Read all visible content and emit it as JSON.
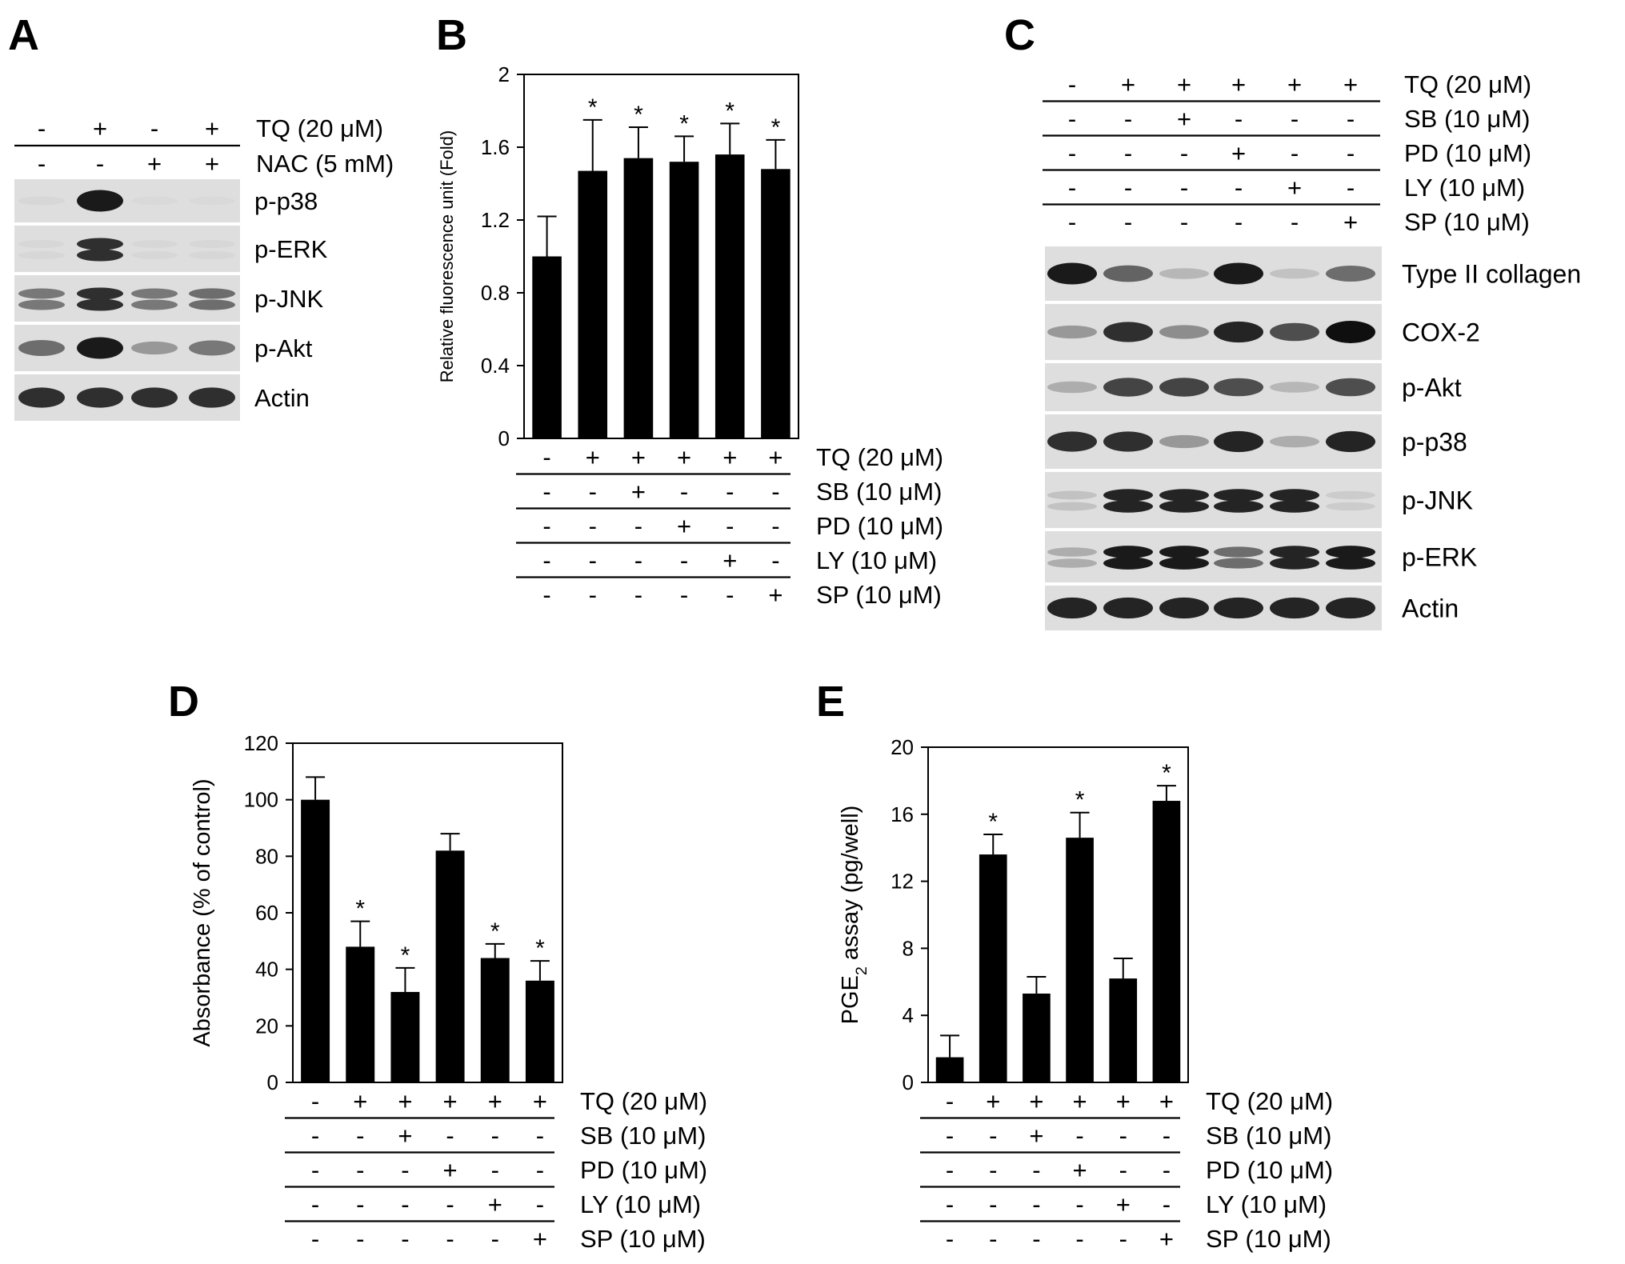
{
  "panels": {
    "A": {
      "letter": "A",
      "conditions": [
        {
          "label": "TQ (20 μM)",
          "signs": [
            "-",
            "+",
            "-",
            "+"
          ]
        },
        {
          "label": "NAC (5 mM)",
          "signs": [
            "-",
            "-",
            "+",
            "+"
          ]
        }
      ],
      "blots": [
        {
          "label": "p-p38",
          "intensity": [
            0.05,
            0.95,
            0.04,
            0.04
          ],
          "double": false
        },
        {
          "label": "p-ERK",
          "intensity": [
            0.05,
            0.85,
            0.05,
            0.05
          ],
          "double": true
        },
        {
          "label": "p-JNK",
          "intensity": [
            0.5,
            0.85,
            0.5,
            0.55
          ],
          "double": true
        },
        {
          "label": "p-Akt",
          "intensity": [
            0.55,
            0.95,
            0.35,
            0.5
          ],
          "double": false
        },
        {
          "label": "Actin",
          "intensity": [
            0.85,
            0.85,
            0.85,
            0.85
          ],
          "double": false
        }
      ]
    },
    "C": {
      "letter": "C",
      "conditions": [
        {
          "label": "TQ (20 μM)",
          "signs": [
            "-",
            "+",
            "+",
            "+",
            "+",
            "+"
          ]
        },
        {
          "label": "SB (10 μM)",
          "signs": [
            "-",
            "-",
            "+",
            "-",
            "-",
            "-"
          ]
        },
        {
          "label": "PD (10 μM)",
          "signs": [
            "-",
            "-",
            "-",
            "+",
            "-",
            "-"
          ]
        },
        {
          "label": "LY (10 μM)",
          "signs": [
            "-",
            "-",
            "-",
            "-",
            "+",
            "-"
          ]
        },
        {
          "label": "SP (10 μM)",
          "signs": [
            "-",
            "-",
            "-",
            "-",
            "-",
            "+"
          ]
        }
      ],
      "blots": [
        {
          "label": "Type II collagen",
          "intensity": [
            0.95,
            0.6,
            0.2,
            0.95,
            0.15,
            0.55
          ],
          "double": false
        },
        {
          "label": "COX-2",
          "intensity": [
            0.35,
            0.85,
            0.4,
            0.9,
            0.7,
            1.0
          ],
          "double": false
        },
        {
          "label": "p-Akt",
          "intensity": [
            0.25,
            0.75,
            0.75,
            0.7,
            0.2,
            0.7
          ],
          "double": false
        },
        {
          "label": "p-p38",
          "intensity": [
            0.85,
            0.85,
            0.35,
            0.9,
            0.25,
            0.9
          ],
          "double": false
        },
        {
          "label": "p-JNK",
          "intensity": [
            0.15,
            0.9,
            0.9,
            0.9,
            0.9,
            0.1
          ],
          "double": true
        },
        {
          "label": "p-ERK",
          "intensity": [
            0.25,
            0.95,
            0.95,
            0.55,
            0.9,
            0.95
          ],
          "double": true
        },
        {
          "label": "Actin",
          "intensity": [
            0.9,
            0.9,
            0.9,
            0.9,
            0.9,
            0.9
          ],
          "double": false
        }
      ]
    },
    "B": {
      "letter": "B"
    },
    "D": {
      "letter": "D"
    },
    "E": {
      "letter": "E"
    }
  },
  "chart_data": [
    {
      "panel": "B",
      "type": "bar",
      "categories": [
        "1",
        "2",
        "3",
        "4",
        "5",
        "6"
      ],
      "values": [
        1.0,
        1.47,
        1.54,
        1.52,
        1.56,
        1.48
      ],
      "errors": [
        0.22,
        0.28,
        0.17,
        0.14,
        0.17,
        0.16
      ],
      "significant": [
        false,
        true,
        true,
        true,
        true,
        true
      ],
      "significance_mark": "*",
      "ylabel": "Relative fluorescence unit (Fold)",
      "ylim": [
        0,
        2
      ],
      "yticks": [
        "0",
        "0.4",
        "0.8",
        "1.2",
        "1.6",
        "2"
      ],
      "conditions": [
        {
          "label": "TQ (20 μM)",
          "signs": [
            "-",
            "+",
            "+",
            "+",
            "+",
            "+"
          ]
        },
        {
          "label": "SB (10 μM)",
          "signs": [
            "-",
            "-",
            "+",
            "-",
            "-",
            "-"
          ]
        },
        {
          "label": "PD (10 μM)",
          "signs": [
            "-",
            "-",
            "-",
            "+",
            "-",
            "-"
          ]
        },
        {
          "label": "LY (10 μM)",
          "signs": [
            "-",
            "-",
            "-",
            "-",
            "+",
            "-"
          ]
        },
        {
          "label": "SP (10 μM)",
          "signs": [
            "-",
            "-",
            "-",
            "-",
            "-",
            "+"
          ]
        }
      ]
    },
    {
      "panel": "D",
      "type": "bar",
      "categories": [
        "1",
        "2",
        "3",
        "4",
        "5",
        "6"
      ],
      "values": [
        100,
        48,
        32,
        82,
        44,
        36
      ],
      "errors": [
        8,
        9,
        8.5,
        6,
        5,
        7
      ],
      "significant": [
        false,
        true,
        true,
        false,
        true,
        true
      ],
      "significance_mark": "*",
      "ylabel": "Absorbance (% of control)",
      "ylim": [
        0,
        120
      ],
      "yticks": [
        "0",
        "20",
        "40",
        "60",
        "80",
        "100",
        "120"
      ],
      "conditions": [
        {
          "label": "TQ (20 μM)",
          "signs": [
            "-",
            "+",
            "+",
            "+",
            "+",
            "+"
          ]
        },
        {
          "label": "SB (10 μM)",
          "signs": [
            "-",
            "-",
            "+",
            "-",
            "-",
            "-"
          ]
        },
        {
          "label": "PD (10 μM)",
          "signs": [
            "-",
            "-",
            "-",
            "+",
            "-",
            "-"
          ]
        },
        {
          "label": "LY (10 μM)",
          "signs": [
            "-",
            "-",
            "-",
            "-",
            "+",
            "-"
          ]
        },
        {
          "label": "SP (10 μM)",
          "signs": [
            "-",
            "-",
            "-",
            "-",
            "-",
            "+"
          ]
        }
      ]
    },
    {
      "panel": "E",
      "type": "bar",
      "categories": [
        "1",
        "2",
        "3",
        "4",
        "5",
        "6"
      ],
      "values": [
        1.5,
        13.6,
        5.3,
        14.6,
        6.2,
        16.8
      ],
      "errors": [
        1.3,
        1.2,
        1.0,
        1.5,
        1.2,
        0.9
      ],
      "significant": [
        false,
        true,
        false,
        true,
        false,
        true
      ],
      "significance_mark": "*",
      "ylabel_pre": "PGE",
      "ylabel_sub": "2",
      "ylabel_post": " assay (pg/well)",
      "ylim": [
        0,
        20
      ],
      "yticks": [
        "0",
        "4",
        "8",
        "12",
        "16",
        "20"
      ],
      "conditions": [
        {
          "label": "TQ (20 μM)",
          "signs": [
            "-",
            "+",
            "+",
            "+",
            "+",
            "+"
          ]
        },
        {
          "label": "SB (10 μM)",
          "signs": [
            "-",
            "-",
            "+",
            "-",
            "-",
            "-"
          ]
        },
        {
          "label": "PD (10 μM)",
          "signs": [
            "-",
            "-",
            "-",
            "+",
            "-",
            "-"
          ]
        },
        {
          "label": "LY (10 μM)",
          "signs": [
            "-",
            "-",
            "-",
            "-",
            "+",
            "-"
          ]
        },
        {
          "label": "SP (10 μM)",
          "signs": [
            "-",
            "-",
            "-",
            "-",
            "-",
            "+"
          ]
        }
      ]
    }
  ]
}
